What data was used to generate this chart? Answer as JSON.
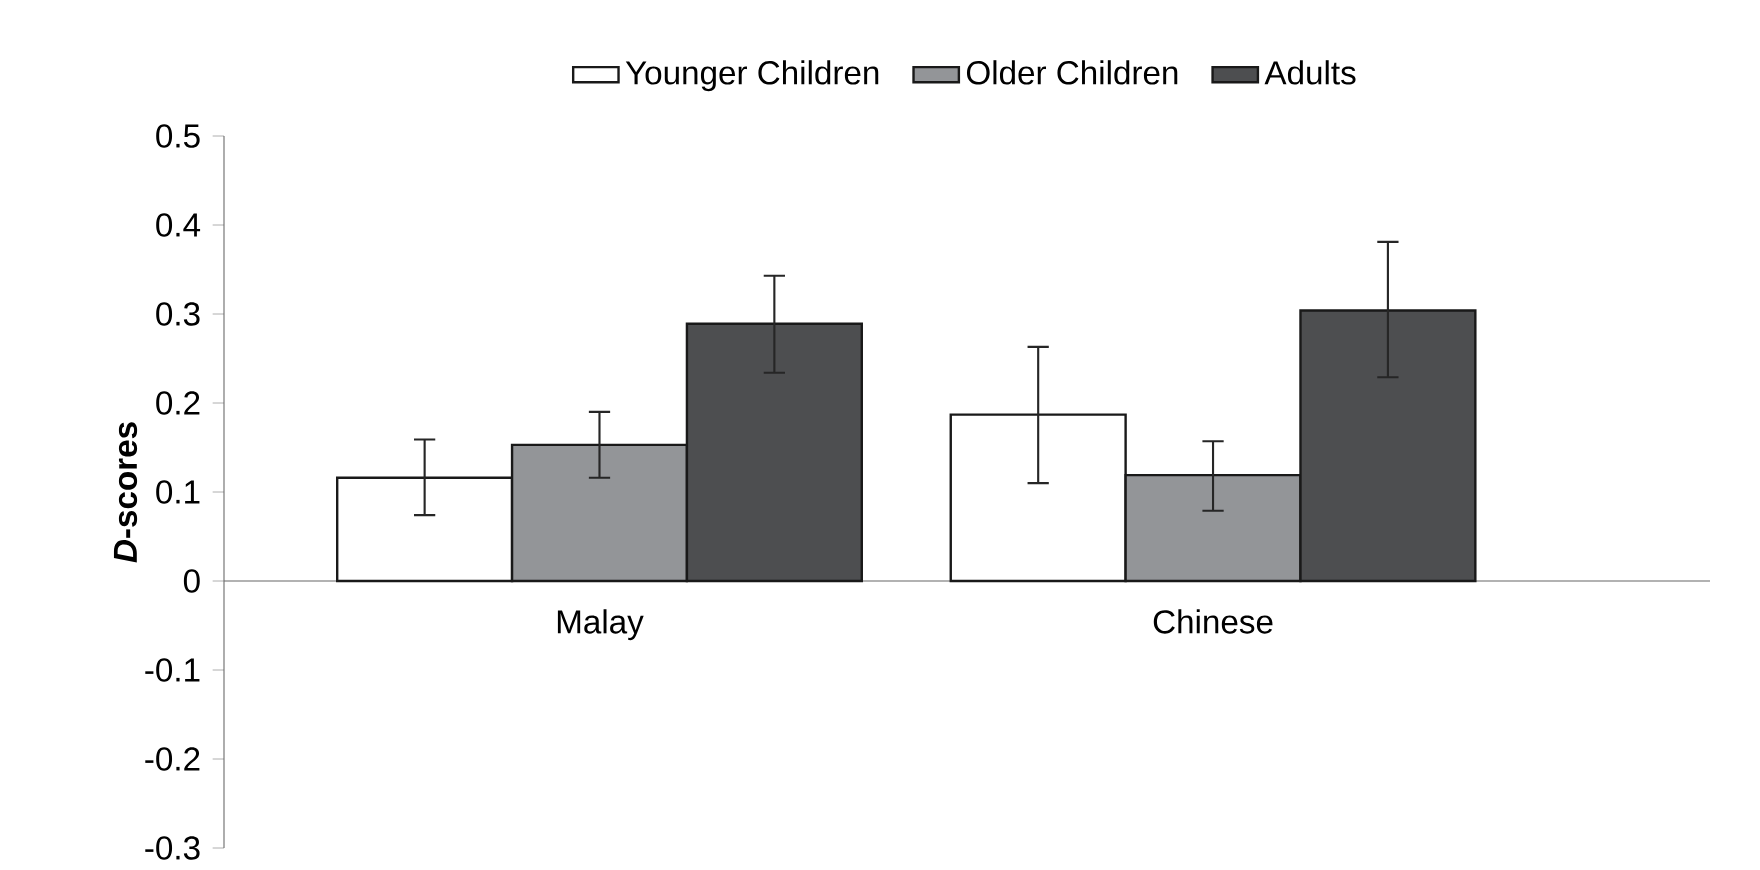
{
  "chart_data": {
    "type": "bar",
    "ylabel": "*D*-scores",
    "categories": [
      "Malay",
      "Chinese"
    ],
    "series": [
      {
        "name": "Younger Children",
        "color": "#ffffff",
        "values": [
          0.116,
          0.187
        ],
        "errors": [
          [
            0.074,
            0.159
          ],
          [
            0.11,
            0.263
          ]
        ]
      },
      {
        "name": "Older Children",
        "color": "#939598",
        "values": [
          0.153,
          0.119
        ],
        "errors": [
          [
            0.116,
            0.19
          ],
          [
            0.079,
            0.157
          ]
        ]
      },
      {
        "name": "Adults",
        "color": "#4d4e50",
        "values": [
          0.289,
          0.304
        ],
        "errors": [
          [
            0.234,
            0.343
          ],
          [
            0.229,
            0.381
          ]
        ]
      }
    ],
    "ylim": [
      -0.3,
      0.5
    ],
    "yticks": [
      -0.3,
      -0.2,
      -0.1,
      0,
      0.1,
      0.2,
      0.3,
      0.4,
      0.5
    ],
    "grid": false,
    "legend": "top"
  }
}
